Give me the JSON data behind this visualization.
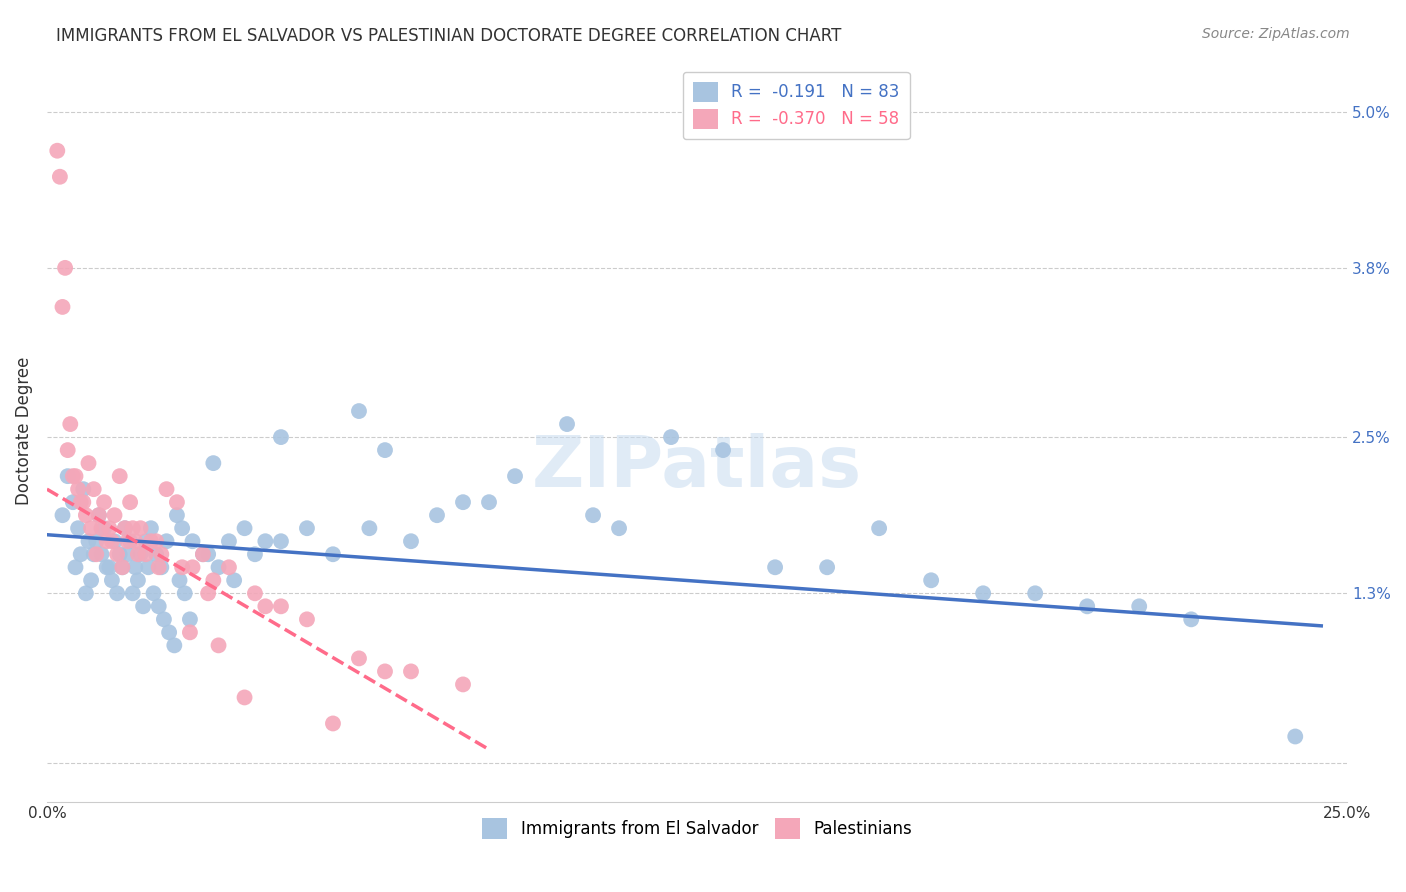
{
  "title": "IMMIGRANTS FROM EL SALVADOR VS PALESTINIAN DOCTORATE DEGREE CORRELATION CHART",
  "source": "Source: ZipAtlas.com",
  "ylabel": "Doctorate Degree",
  "ytick_vals": [
    0.0,
    1.3,
    2.5,
    3.8,
    5.0
  ],
  "ytick_labels": [
    "",
    "1.3%",
    "2.5%",
    "3.8%",
    "5.0%"
  ],
  "xmin": 0.0,
  "xmax": 25.0,
  "ymin": -0.3,
  "ymax": 5.4,
  "color_blue": "#A8C4E0",
  "color_pink": "#F4A7B9",
  "color_line_blue": "#4472C4",
  "color_line_pink": "#FF6B8A",
  "watermark": "ZIPatlas",
  "blue_scatter_x": [
    0.3,
    0.5,
    0.6,
    0.7,
    0.8,
    0.9,
    1.0,
    1.1,
    1.2,
    1.3,
    1.4,
    1.5,
    1.6,
    1.7,
    1.8,
    1.9,
    2.0,
    2.1,
    2.2,
    2.3,
    2.5,
    2.6,
    2.8,
    3.0,
    3.2,
    3.5,
    3.8,
    4.0,
    4.2,
    4.5,
    5.0,
    5.5,
    6.0,
    6.5,
    7.0,
    7.5,
    8.0,
    9.0,
    10.0,
    11.0,
    12.0,
    13.0,
    14.0,
    15.0,
    16.0,
    17.0,
    18.0,
    20.0,
    22.0,
    24.0,
    0.4,
    0.55,
    0.65,
    0.75,
    0.85,
    0.95,
    1.05,
    1.15,
    1.25,
    1.35,
    1.45,
    1.55,
    1.65,
    1.75,
    1.85,
    1.95,
    2.05,
    2.15,
    2.25,
    2.35,
    2.45,
    2.55,
    2.65,
    2.75,
    3.1,
    3.3,
    3.6,
    4.5,
    6.2,
    8.5,
    10.5,
    19.0,
    21.0
  ],
  "blue_scatter_y": [
    1.9,
    2.0,
    1.8,
    2.1,
    1.7,
    1.6,
    1.9,
    1.8,
    1.5,
    1.7,
    1.6,
    1.8,
    1.7,
    1.5,
    1.6,
    1.7,
    1.8,
    1.6,
    1.5,
    1.7,
    1.9,
    1.8,
    1.7,
    1.6,
    2.3,
    1.7,
    1.8,
    1.6,
    1.7,
    2.5,
    1.8,
    1.6,
    2.7,
    2.4,
    1.7,
    1.9,
    2.0,
    2.2,
    2.6,
    1.8,
    2.5,
    2.4,
    1.5,
    1.5,
    1.8,
    1.4,
    1.3,
    1.2,
    1.1,
    0.2,
    2.2,
    1.5,
    1.6,
    1.3,
    1.4,
    1.7,
    1.6,
    1.5,
    1.4,
    1.3,
    1.5,
    1.6,
    1.3,
    1.4,
    1.2,
    1.5,
    1.3,
    1.2,
    1.1,
    1.0,
    0.9,
    1.4,
    1.3,
    1.1,
    1.6,
    1.5,
    1.4,
    1.7,
    1.8,
    2.0,
    1.9,
    1.3,
    1.2
  ],
  "pink_scatter_x": [
    0.2,
    0.3,
    0.4,
    0.5,
    0.6,
    0.7,
    0.8,
    0.9,
    1.0,
    1.1,
    1.2,
    1.3,
    1.4,
    1.5,
    1.6,
    1.7,
    1.8,
    2.0,
    2.2,
    2.5,
    2.8,
    3.0,
    3.2,
    3.5,
    4.0,
    4.5,
    5.0,
    6.0,
    7.0,
    8.0,
    0.35,
    0.55,
    0.65,
    0.75,
    0.85,
    0.95,
    1.05,
    1.15,
    1.25,
    1.35,
    1.45,
    1.55,
    1.65,
    1.75,
    2.1,
    2.3,
    2.6,
    3.1,
    3.8,
    5.5,
    0.25,
    0.45,
    1.9,
    2.15,
    2.75,
    3.3,
    4.2,
    6.5
  ],
  "pink_scatter_y": [
    4.7,
    3.5,
    2.4,
    2.2,
    2.1,
    2.0,
    2.3,
    2.1,
    1.9,
    2.0,
    1.8,
    1.9,
    2.2,
    1.8,
    2.0,
    1.7,
    1.8,
    1.7,
    1.6,
    2.0,
    1.5,
    1.6,
    1.4,
    1.5,
    1.3,
    1.2,
    1.1,
    0.8,
    0.7,
    0.6,
    3.8,
    2.2,
    2.0,
    1.9,
    1.8,
    1.6,
    1.8,
    1.7,
    1.7,
    1.6,
    1.5,
    1.7,
    1.8,
    1.6,
    1.7,
    2.1,
    1.5,
    1.3,
    0.5,
    0.3,
    4.5,
    2.6,
    1.6,
    1.5,
    1.0,
    0.9,
    1.2,
    0.7
  ],
  "blue_line_x": [
    0.0,
    24.5
  ],
  "blue_line_y": [
    1.75,
    1.05
  ],
  "pink_line_x": [
    0.0,
    8.5
  ],
  "pink_line_y": [
    2.1,
    0.1
  ],
  "figsize": [
    14.06,
    8.92
  ],
  "dpi": 100
}
